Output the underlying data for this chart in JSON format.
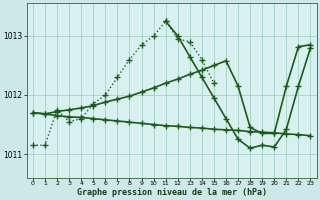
{
  "bg_color": "#cce8e8",
  "plot_bg_color": "#d8f0f0",
  "grid_color": "#99ccbb",
  "line_color": "#1a5c1a",
  "xlabel": "Graphe pression niveau de la mer (hPa)",
  "ylim": [
    1010.6,
    1013.55
  ],
  "yticks": [
    1011,
    1012,
    1013
  ],
  "xticks": [
    0,
    1,
    2,
    3,
    4,
    5,
    6,
    7,
    8,
    9,
    10,
    11,
    12,
    13,
    14,
    15,
    16,
    17,
    18,
    19,
    20,
    21,
    22,
    23
  ],
  "series1_x": [
    0,
    1,
    2,
    3,
    4,
    5,
    6,
    7,
    8,
    9,
    10,
    11,
    12,
    13,
    14,
    15
  ],
  "series1_y": [
    1011.15,
    1011.15,
    1011.75,
    1011.55,
    1011.6,
    1011.85,
    1012.0,
    1012.3,
    1012.6,
    1012.85,
    1013.0,
    1013.25,
    1012.95,
    1012.9,
    1012.6,
    1012.2
  ],
  "series2_x": [
    0,
    1,
    2,
    3,
    4,
    5,
    6,
    7,
    8,
    9,
    10,
    11,
    12,
    13,
    14,
    15,
    16,
    17,
    18,
    19,
    20,
    21,
    22,
    23
  ],
  "series2_y": [
    1011.7,
    1011.68,
    1011.65,
    1011.63,
    1011.62,
    1011.6,
    1011.58,
    1011.56,
    1011.54,
    1011.52,
    1011.5,
    1011.48,
    1011.47,
    1011.45,
    1011.44,
    1011.42,
    1011.41,
    1011.4,
    1011.38,
    1011.37,
    1011.36,
    1011.34,
    1011.33,
    1011.31
  ],
  "series3_x": [
    0,
    1,
    2,
    3,
    4,
    5,
    6,
    7,
    8,
    9,
    10,
    11,
    12,
    13,
    14,
    15,
    16,
    17,
    18,
    19,
    20,
    21,
    22,
    23
  ],
  "series3_y": [
    1011.7,
    1011.68,
    1011.72,
    1011.75,
    1011.78,
    1011.82,
    1011.88,
    1011.93,
    1011.98,
    1012.05,
    1012.12,
    1012.2,
    1012.27,
    1012.35,
    1012.42,
    1012.5,
    1012.58,
    1012.15,
    1011.45,
    1011.35,
    1011.35,
    1012.15,
    1012.82,
    1012.85
  ],
  "series4_x": [
    11,
    12,
    13,
    14,
    15,
    16,
    17,
    18,
    19,
    20,
    21,
    22,
    23
  ],
  "series4_y": [
    1013.25,
    1013.0,
    1012.65,
    1012.3,
    1011.95,
    1011.6,
    1011.25,
    1011.1,
    1011.15,
    1011.12,
    1011.42,
    1012.15,
    1012.8
  ],
  "marker": "+",
  "markersize": 4,
  "markeredgewidth": 1.0,
  "linewidth_dotted": 1.0,
  "linewidth_solid": 1.2
}
